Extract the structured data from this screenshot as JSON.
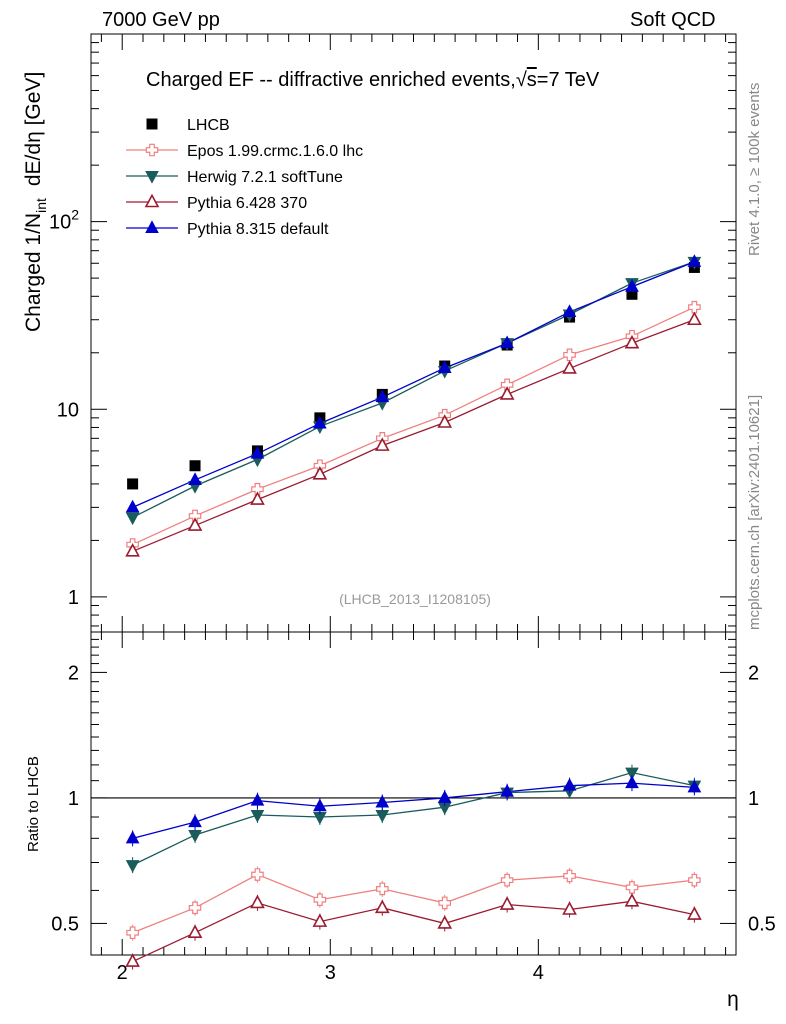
{
  "header": {
    "left": "7000 GeV pp",
    "right": "Soft QCD"
  },
  "side_labels": {
    "rivet": "Rivet 4.1.0, ≥ 100k events",
    "mcplots": "mcplots.cern.ch [arXiv:2401.10621]"
  },
  "colors": {
    "LHCB": "#000000",
    "Epos": "#f08080",
    "Herwig": "#1a5c5c",
    "Pythia6": "#9b1b30",
    "Pythia8": "#0000cc"
  },
  "chart_data": [
    {
      "panel": "main",
      "type": "line",
      "title_main": "Charged EF -- diffractive enriched events,",
      "title_sqrt_sym": "√",
      "title_s": "s",
      "title_energy": "=7 TeV",
      "ylabel_a": "Charged 1/N",
      "ylabel_sub": "int",
      "ylabel_b": "dE/dη [GeV]",
      "yscale": "log",
      "ylim": [
        0.65,
        1000
      ],
      "xlim": [
        1.85,
        4.95
      ],
      "yticks": [
        {
          "v": 1,
          "label": "1"
        },
        {
          "v": 10,
          "label": "10"
        },
        {
          "v": 100,
          "label": "10",
          "sup": "2"
        }
      ],
      "watermark": "(LHCB_2013_I1208105)",
      "legend_position": "top-left",
      "x": [
        2.05,
        2.35,
        2.65,
        2.95,
        3.25,
        3.55,
        3.85,
        4.15,
        4.45,
        4.75
      ],
      "series": [
        {
          "key": "LHCB",
          "name": "LHCB",
          "marker": "square",
          "line": false,
          "values": [
            4.0,
            5.0,
            6.0,
            9.0,
            12.0,
            17.0,
            22.0,
            31.0,
            41.0,
            57.0
          ]
        },
        {
          "key": "Epos",
          "name": "Epos 1.99.crmc.1.6.0 lhc",
          "marker": "cross",
          "line": true,
          "values": [
            1.9,
            2.7,
            3.75,
            5.0,
            7.0,
            9.3,
            13.5,
            19.5,
            24.5,
            35.0
          ]
        },
        {
          "key": "Herwig",
          "name": "Herwig 7.2.1 softTune",
          "marker": "tri-down",
          "line": true,
          "values": [
            2.65,
            3.9,
            5.4,
            8.1,
            10.8,
            16.0,
            22.5,
            32.0,
            47.0,
            61.0
          ]
        },
        {
          "key": "Pythia6",
          "name": "Pythia 6.428 370",
          "marker": "tri-up-open",
          "line": true,
          "values": [
            1.75,
            2.4,
            3.3,
            4.5,
            6.4,
            8.5,
            12.0,
            16.5,
            22.5,
            30.0
          ]
        },
        {
          "key": "Pythia8",
          "name": "Pythia 8.315 default",
          "marker": "tri-up",
          "line": true,
          "values": [
            3.0,
            4.2,
            5.8,
            8.4,
            11.6,
            16.6,
            22.5,
            33.0,
            45.0,
            61.0
          ]
        }
      ]
    },
    {
      "panel": "ratio",
      "type": "line",
      "ylabel": "Ratio to LHCB",
      "xlabel": "η",
      "yscale": "log",
      "ylim": [
        0.42,
        2.5
      ],
      "xlim": [
        1.85,
        4.95
      ],
      "yticks": [
        {
          "v": 0.5,
          "label": "0.5"
        },
        {
          "v": 1,
          "label": "1"
        },
        {
          "v": 2,
          "label": "2"
        }
      ],
      "xticks": [
        {
          "v": 2,
          "label": "2"
        },
        {
          "v": 3,
          "label": "3"
        },
        {
          "v": 4,
          "label": "4"
        }
      ],
      "x": [
        2.05,
        2.35,
        2.65,
        2.95,
        3.25,
        3.55,
        3.85,
        4.15,
        4.45,
        4.75
      ],
      "series": [
        {
          "key": "Epos",
          "marker": "cross",
          "values": [
            0.475,
            0.545,
            0.655,
            0.57,
            0.605,
            0.56,
            0.635,
            0.65,
            0.61,
            0.635
          ]
        },
        {
          "key": "Herwig",
          "marker": "tri-down",
          "values": [
            0.69,
            0.815,
            0.91,
            0.9,
            0.91,
            0.95,
            1.03,
            1.04,
            1.15,
            1.07
          ]
        },
        {
          "key": "Pythia6",
          "marker": "tri-up-open",
          "values": [
            0.405,
            0.475,
            0.56,
            0.505,
            0.545,
            0.5,
            0.555,
            0.54,
            0.565,
            0.525
          ]
        },
        {
          "key": "Pythia8",
          "marker": "tri-up",
          "values": [
            0.8,
            0.875,
            0.985,
            0.955,
            0.975,
            1.0,
            1.035,
            1.07,
            1.085,
            1.06
          ]
        }
      ]
    }
  ]
}
